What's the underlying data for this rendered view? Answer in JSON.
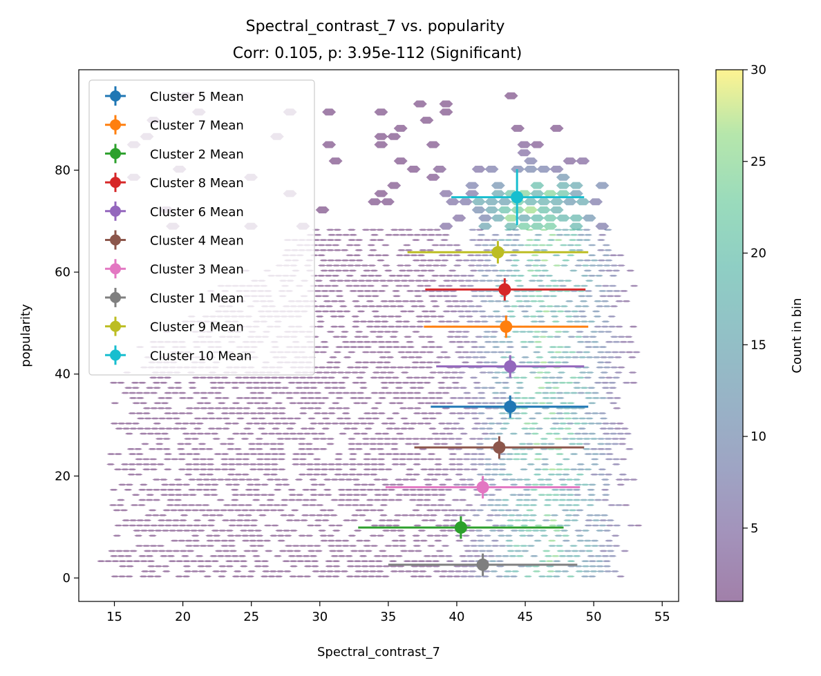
{
  "chart_data": {
    "type": "scatter",
    "title": "Spectral_contrast_7 vs. popularity",
    "subtitle": "Corr: 0.105, p: 3.95e-112 (Significant)",
    "xlabel": "Spectral_contrast_7",
    "ylabel": "popularity",
    "xlim": [
      12.4,
      56.2
    ],
    "ylim": [
      -4.6,
      99.7
    ],
    "xticks": [
      15,
      20,
      25,
      30,
      35,
      40,
      45,
      50,
      55
    ],
    "yticks": [
      0,
      20,
      40,
      60,
      80
    ],
    "grid": false,
    "legend_position": "upper-left",
    "background": "hexbin density of songs, count per bin",
    "colorbar": {
      "label": "Count in bin",
      "range": [
        1,
        30
      ],
      "ticks": [
        5,
        10,
        15,
        20,
        25,
        30
      ],
      "colormap": "viridis",
      "alpha": 0.5
    },
    "series": [
      {
        "name": "Cluster 5 Mean",
        "color": "#1f77b4",
        "x": 43.9,
        "y": 33.6,
        "xerr": [
          38.1,
          49.6
        ],
        "yerr": [
          31.4,
          35.8
        ]
      },
      {
        "name": "Cluster 7 Mean",
        "color": "#ff7f0e",
        "x": 43.6,
        "y": 49.3,
        "xerr": [
          37.6,
          49.6
        ],
        "yerr": [
          47.1,
          51.5
        ]
      },
      {
        "name": "Cluster 2 Mean",
        "color": "#2ca02c",
        "x": 40.3,
        "y": 9.9,
        "xerr": [
          32.8,
          47.8
        ],
        "yerr": [
          7.7,
          12.1
        ]
      },
      {
        "name": "Cluster 8 Mean",
        "color": "#d62728",
        "x": 43.5,
        "y": 56.6,
        "xerr": [
          37.7,
          49.4
        ],
        "yerr": [
          54.4,
          58.8
        ]
      },
      {
        "name": "Cluster 6 Mean",
        "color": "#9467bd",
        "x": 43.9,
        "y": 41.5,
        "xerr": [
          38.5,
          49.3
        ],
        "yerr": [
          39.3,
          43.7
        ]
      },
      {
        "name": "Cluster 4 Mean",
        "color": "#8c564b",
        "x": 43.1,
        "y": 25.6,
        "xerr": [
          36.9,
          49.3
        ],
        "yerr": [
          23.4,
          27.8
        ]
      },
      {
        "name": "Cluster 3 Mean",
        "color": "#e377c2",
        "x": 41.9,
        "y": 17.8,
        "xerr": [
          34.8,
          49.0
        ],
        "yerr": [
          15.6,
          20.0
        ]
      },
      {
        "name": "Cluster 1 Mean",
        "color": "#7f7f7f",
        "x": 41.9,
        "y": 2.6,
        "xerr": [
          35.0,
          48.8
        ],
        "yerr": [
          0.4,
          4.8
        ]
      },
      {
        "name": "Cluster 9 Mean",
        "color": "#bcbd22",
        "x": 43.0,
        "y": 63.9,
        "xerr": [
          36.4,
          49.6
        ],
        "yerr": [
          61.7,
          66.1
        ]
      },
      {
        "name": "Cluster 10 Mean",
        "color": "#17becf",
        "x": 44.4,
        "y": 74.7,
        "xerr": [
          39.6,
          49.3
        ],
        "yerr": [
          69.2,
          80.2
        ]
      }
    ]
  }
}
